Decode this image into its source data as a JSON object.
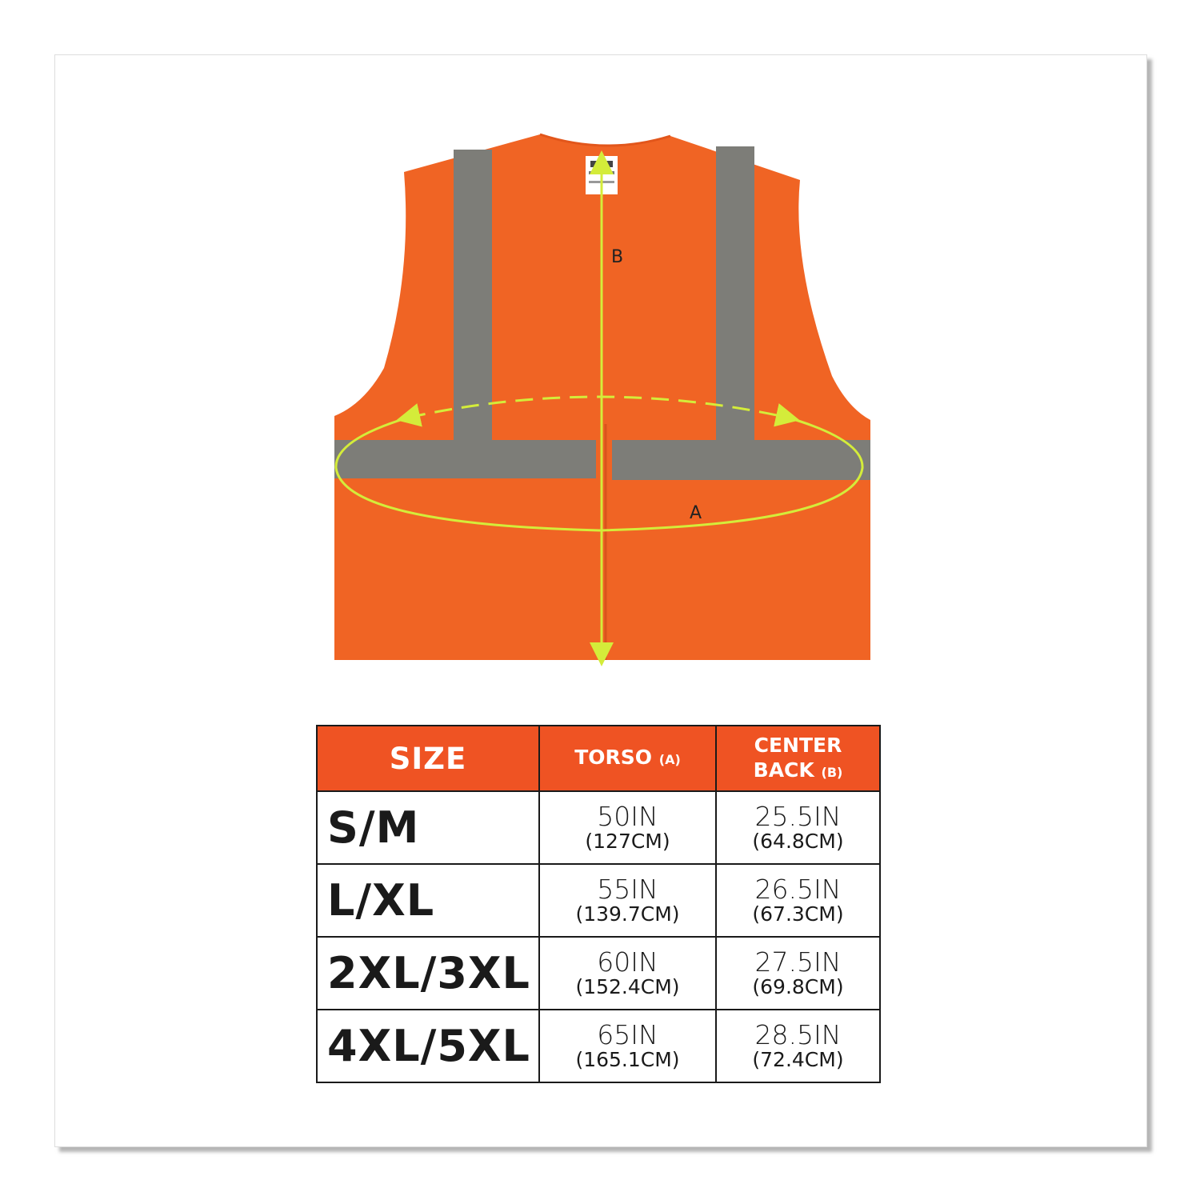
{
  "diagram": {
    "label_a": "A",
    "label_b": "B",
    "colors": {
      "vest": "#f06424",
      "stripe": "#7d7d78",
      "measure": "#d4ec3a"
    }
  },
  "table": {
    "headers": {
      "size": "SIZE",
      "torso": "TORSO",
      "torso_ref": "(A)",
      "center_back_1": "CENTER",
      "center_back_2": "BACK",
      "center_back_ref": "(B)"
    },
    "rows": [
      {
        "size": "S/M",
        "torso_in": "50IN",
        "torso_cm": "(127CM)",
        "back_in": "25.5IN",
        "back_cm": "(64.8CM)"
      },
      {
        "size": "L/XL",
        "torso_in": "55IN",
        "torso_cm": "(139.7CM)",
        "back_in": "26.5IN",
        "back_cm": "(67.3CM)"
      },
      {
        "size": "2XL/3XL",
        "torso_in": "60IN",
        "torso_cm": "(152.4CM)",
        "back_in": "27.5IN",
        "back_cm": "(69.8CM)"
      },
      {
        "size": "4XL/5XL",
        "torso_in": "65IN",
        "torso_cm": "(165.1CM)",
        "back_in": "28.5IN",
        "back_cm": "(72.4CM)"
      }
    ],
    "header_color": "#ef5323"
  }
}
